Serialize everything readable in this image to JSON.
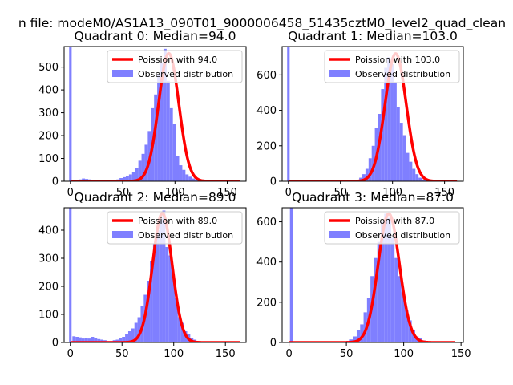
{
  "figure": {
    "suptitle": "n file: modeM0/AS1A13_090T01_9000006458_51435cztM0_level2_quad_clean"
  },
  "colors": {
    "hist": "#7f7fff",
    "fit": "#ff0000",
    "axes": "#000000"
  },
  "chart_data": [
    {
      "type": "bar",
      "title": "Quadrant 0: Median=94.0",
      "legend": {
        "placement": "top-right",
        "fit_label": "Poission with 94.0",
        "hist_label": "Observed distribution"
      },
      "xlim": [
        -6,
        168
      ],
      "ylim": [
        0,
        590
      ],
      "xticks": [
        0,
        50,
        100,
        150
      ],
      "yticks": [
        0,
        100,
        200,
        300,
        400,
        500
      ],
      "xticklabels": [
        "0",
        "50",
        "100",
        "150"
      ],
      "yticklabels": [
        "0",
        "100",
        "200",
        "300",
        "400",
        "500"
      ],
      "median": 94.0,
      "peak": 560,
      "spike": {
        "x": 0,
        "y": 590
      },
      "bins": {
        "start": 2,
        "width": 3,
        "values": [
          0,
          0,
          8,
          12,
          10,
          8,
          0,
          0,
          0,
          0,
          0,
          0,
          0,
          0,
          8,
          14,
          18,
          22,
          30,
          40,
          58,
          90,
          120,
          160,
          220,
          320,
          380,
          470,
          520,
          580,
          440,
          320,
          250,
          110,
          70,
          50,
          30,
          20,
          12,
          8,
          5,
          3,
          2,
          1,
          0,
          0,
          0,
          0,
          0,
          0,
          0,
          0,
          0
        ]
      },
      "fit_x_range": [
        0,
        162
      ]
    },
    {
      "type": "bar",
      "title": "Quadrant 1: Median=103.0",
      "legend": {
        "placement": "top-right",
        "fit_label": "Poission with 103.0",
        "hist_label": "Observed distribution"
      },
      "xlim": [
        -6,
        168
      ],
      "ylim": [
        0,
        760
      ],
      "xticks": [
        0,
        50,
        100,
        150
      ],
      "yticks": [
        0,
        200,
        400,
        600
      ],
      "xticklabels": [
        "0",
        "50",
        "100",
        "150"
      ],
      "yticklabels": [
        "0",
        "200",
        "400",
        "600"
      ],
      "median": 103.0,
      "peak": 720,
      "spike": {
        "x": 0,
        "y": 760
      },
      "bins": {
        "start": 2,
        "width": 3,
        "values": [
          0,
          0,
          0,
          0,
          0,
          0,
          0,
          0,
          0,
          0,
          0,
          0,
          0,
          0,
          0,
          0,
          0,
          0,
          0,
          0,
          0,
          0,
          20,
          40,
          70,
          130,
          200,
          300,
          380,
          520,
          640,
          700,
          660,
          560,
          420,
          330,
          260,
          160,
          110,
          70,
          40,
          20,
          10,
          5,
          3,
          0,
          0,
          0,
          0,
          0,
          0,
          0,
          0
        ]
      },
      "fit_x_range": [
        0,
        162
      ]
    },
    {
      "type": "bar",
      "title": "Quadrant 2: Median=89.0",
      "legend": {
        "placement": "top-right",
        "fit_label": "Poission with 89.0",
        "hist_label": "Observed distribution"
      },
      "xlim": [
        -6,
        170
      ],
      "ylim": [
        0,
        480
      ],
      "xticks": [
        0,
        50,
        100,
        150
      ],
      "yticks": [
        0,
        100,
        200,
        300,
        400
      ],
      "xticklabels": [
        "0",
        "50",
        "100",
        "150"
      ],
      "yticklabels": [
        "0",
        "100",
        "200",
        "300",
        "400"
      ],
      "median": 89.0,
      "peak": 460,
      "spike": {
        "x": 0,
        "y": 480
      },
      "bins": {
        "start": 2,
        "width": 3,
        "values": [
          22,
          20,
          18,
          14,
          16,
          14,
          20,
          15,
          12,
          10,
          8,
          5,
          5,
          8,
          10,
          15,
          20,
          30,
          40,
          50,
          70,
          90,
          130,
          170,
          220,
          290,
          350,
          400,
          440,
          470,
          340,
          310,
          240,
          160,
          90,
          70,
          40,
          30,
          15,
          10,
          5,
          3,
          2,
          1,
          0,
          0,
          0,
          0,
          0,
          0,
          0,
          0,
          0,
          0,
          0
        ]
      },
      "fit_x_range": [
        0,
        164
      ]
    },
    {
      "type": "bar",
      "title": "Quadrant 3: Median=87.0",
      "legend": {
        "placement": "top-right",
        "fit_label": "Poission with 87.0",
        "hist_label": "Observed distribution"
      },
      "xlim": [
        -6,
        152
      ],
      "ylim": [
        0,
        670
      ],
      "xticks": [
        0,
        50,
        100,
        150
      ],
      "yticks": [
        0,
        200,
        400,
        600
      ],
      "xticklabels": [
        "0",
        "50",
        "100",
        "150"
      ],
      "yticklabels": [
        "0",
        "200",
        "400",
        "600"
      ],
      "median": 87.0,
      "peak": 640,
      "spike": {
        "x": 2,
        "y": 670
      },
      "bins": {
        "start": 44,
        "width": 3,
        "values": [
          2,
          4,
          8,
          15,
          30,
          60,
          90,
          150,
          220,
          330,
          420,
          500,
          600,
          640,
          620,
          520,
          420,
          330,
          250,
          160,
          110,
          60,
          30,
          20,
          10,
          5,
          3,
          2,
          1,
          0,
          0,
          0,
          0,
          0,
          0
        ]
      },
      "fit_x_range": [
        0,
        145
      ]
    }
  ]
}
